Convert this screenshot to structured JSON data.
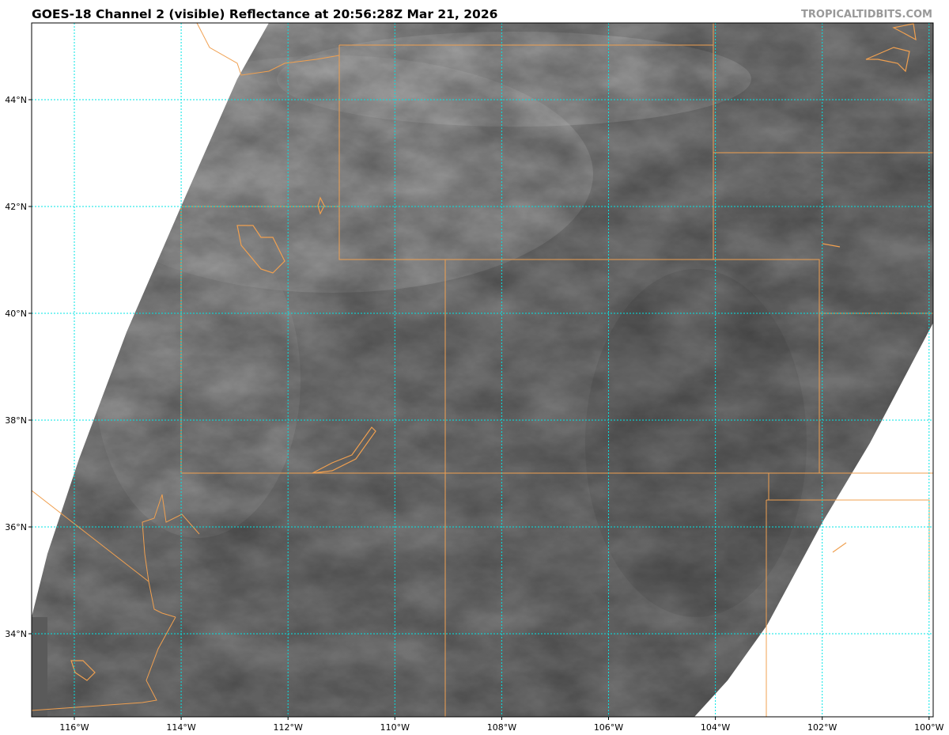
{
  "header": {
    "title": "GOES-18 Channel 2 (visible) Reflectance at 20:56:28Z Mar 21, 2026",
    "credit": "TROPICALTIDBITS.COM"
  },
  "map": {
    "product": "visible reflectance",
    "colormap": "grayscale",
    "gridline_color": "#00e5e5",
    "border_color": "#f0a050",
    "lon_labels": [
      "116°W",
      "114°W",
      "112°W",
      "110°W",
      "108°W",
      "106°W",
      "104°W",
      "102°W",
      "100°W"
    ],
    "lat_labels": [
      "44°N",
      "42°N",
      "40°N",
      "38°N",
      "36°N",
      "34°N"
    ],
    "extent": {
      "lon_min": -116.8,
      "lon_max": -99.9,
      "lat_min": 32.5,
      "lat_max": 45.4
    }
  }
}
